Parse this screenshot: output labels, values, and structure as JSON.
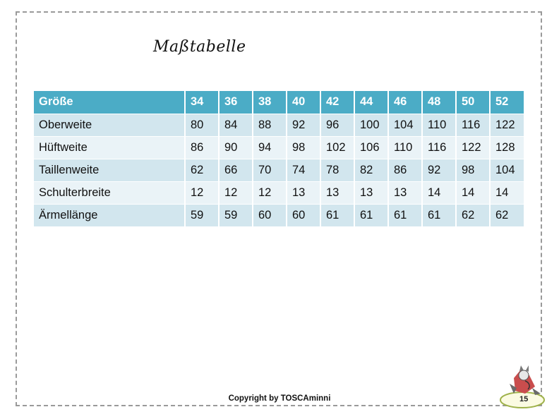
{
  "page": {
    "title": "Maßtabelle",
    "copyright": "Copyright by TOSCAminni",
    "page_number": "15",
    "mascot_icon": "cat-mascot-icon"
  },
  "table": {
    "header": [
      "Größe",
      "34",
      "36",
      "38",
      "40",
      "42",
      "44",
      "46",
      "48",
      "50",
      "52"
    ],
    "rows": [
      [
        "Oberweite",
        "80",
        "84",
        "88",
        "92",
        "96",
        "100",
        "104",
        "110",
        "116",
        "122"
      ],
      [
        "Hüftweite",
        "86",
        "90",
        "94",
        "98",
        "102",
        "106",
        "110",
        "116",
        "122",
        "128"
      ],
      [
        "Taillenweite",
        "62",
        "66",
        "70",
        "74",
        "78",
        "82",
        "86",
        "92",
        "98",
        "104"
      ],
      [
        "Schulterbreite",
        "12",
        "12",
        "12",
        "13",
        "13",
        "13",
        "13",
        "14",
        "14",
        "14"
      ],
      [
        "Ärmellänge",
        "59",
        "59",
        "60",
        "60",
        "61",
        "61",
        "61",
        "61",
        "62",
        "62"
      ]
    ]
  },
  "colors": {
    "header_bg": "#4bacc6",
    "row_dark": "#d2e6ee",
    "row_light": "#eaf3f7"
  }
}
